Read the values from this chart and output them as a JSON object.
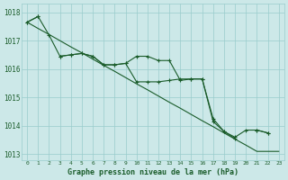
{
  "hours": [
    0,
    1,
    2,
    3,
    4,
    5,
    6,
    7,
    8,
    9,
    10,
    11,
    12,
    13,
    14,
    15,
    16,
    17,
    18,
    19,
    20,
    21,
    22,
    23
  ],
  "series1": [
    1017.65,
    1017.85,
    null,
    1016.45,
    1016.5,
    1016.55,
    1016.45,
    1016.15,
    1016.15,
    1016.2,
    1016.45,
    1016.45,
    1016.3,
    1016.3,
    1015.6,
    1015.65,
    1015.65,
    1014.15,
    1013.8,
    1013.55,
    null,
    1013.85,
    1013.75,
    null
  ],
  "series2": [
    1017.65,
    1017.85,
    1017.2,
    1016.45,
    1016.5,
    1016.55,
    1016.45,
    1016.15,
    1016.15,
    1016.2,
    1015.55,
    1015.55,
    1015.55,
    1015.6,
    1015.65,
    1015.65,
    1015.65,
    1014.25,
    1013.8,
    1013.6,
    1013.85,
    1013.85,
    1013.75,
    null
  ],
  "trend": [
    1017.65,
    1017.43,
    1017.22,
    1017.0,
    1016.78,
    1016.57,
    1016.35,
    1016.13,
    1015.92,
    1015.7,
    1015.48,
    1015.27,
    1015.05,
    1014.83,
    1014.62,
    1014.4,
    1014.18,
    1013.97,
    1013.75,
    1013.53,
    1013.32,
    1013.1,
    1013.1,
    1013.1
  ],
  "bg_color": "#cce8e8",
  "grid_color": "#99cccc",
  "line_color": "#1a5c2a",
  "xlabel": "Graphe pression niveau de la mer (hPa)",
  "ylim": [
    1012.8,
    1018.3
  ],
  "yticks": [
    1013,
    1014,
    1015,
    1016,
    1017,
    1018
  ]
}
